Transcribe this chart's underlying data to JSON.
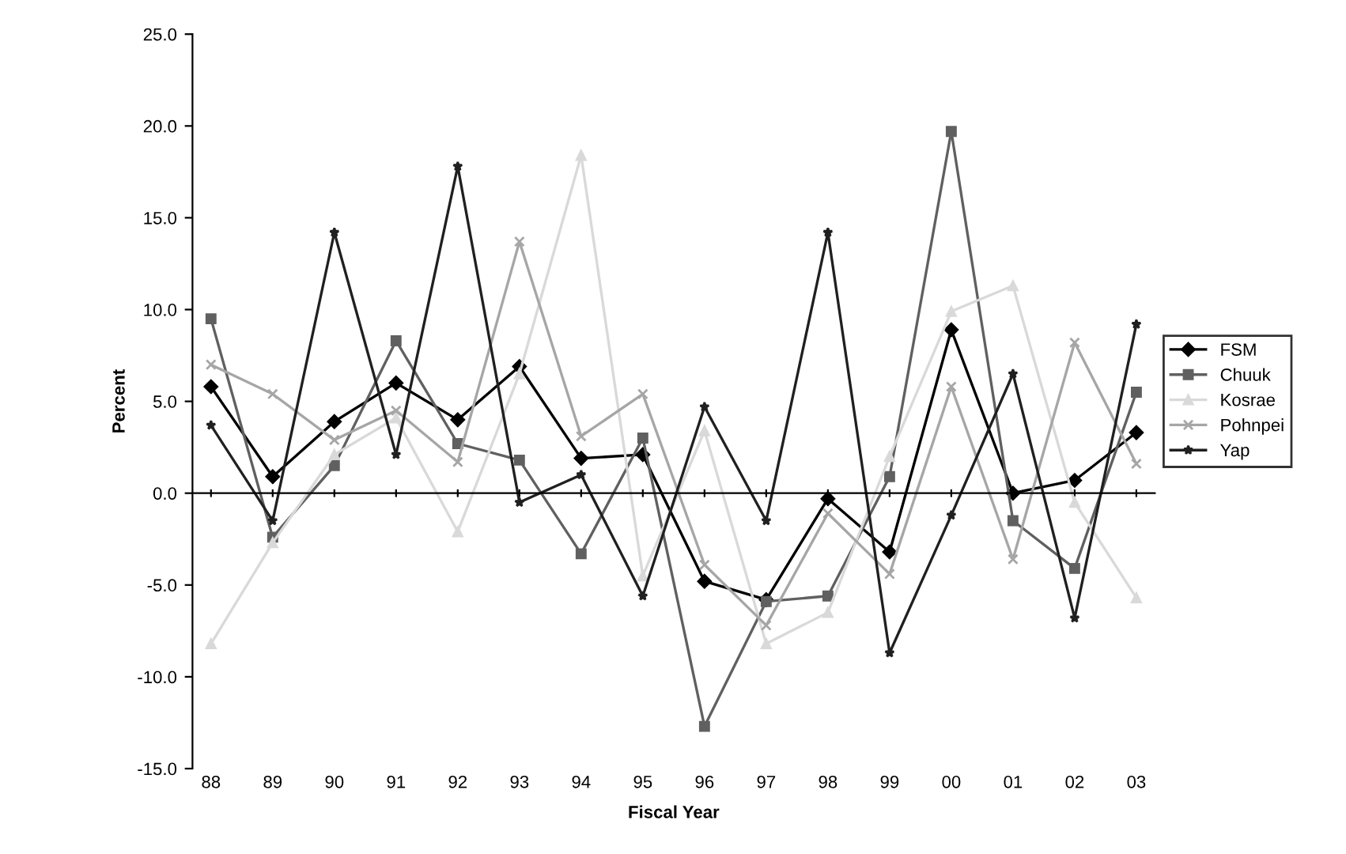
{
  "chart_data": {
    "type": "line",
    "xlabel": "Fiscal Year",
    "ylabel": "Percent",
    "categories": [
      "88",
      "89",
      "90",
      "91",
      "92",
      "93",
      "94",
      "95",
      "96",
      "97",
      "98",
      "99",
      "00",
      "01",
      "02",
      "03"
    ],
    "ylim": [
      -15,
      25
    ],
    "yticks": [
      {
        "value": -15,
        "label": "-15.0"
      },
      {
        "value": -10,
        "label": "-10.0"
      },
      {
        "value": -5,
        "label": "-5.0"
      },
      {
        "value": 0,
        "label": "0.0"
      },
      {
        "value": 5,
        "label": "5.0"
      },
      {
        "value": 10,
        "label": "10.0"
      },
      {
        "value": 15,
        "label": "15.0"
      },
      {
        "value": 20,
        "label": "20.0"
      },
      {
        "value": 25,
        "label": "25.0"
      }
    ],
    "legend": "right",
    "line_style": "solid",
    "series": [
      {
        "name": "FSM",
        "color": "#000000",
        "marker": "diamond",
        "values": [
          5.8,
          0.9,
          3.9,
          6.0,
          4.0,
          6.9,
          1.9,
          2.1,
          -4.8,
          -5.8,
          -0.3,
          -3.2,
          8.9,
          0.0,
          0.7,
          3.3
        ]
      },
      {
        "name": "Chuuk",
        "color": "#606060",
        "marker": "square",
        "values": [
          9.5,
          -2.4,
          1.5,
          8.3,
          2.7,
          1.8,
          -3.3,
          3.0,
          -12.7,
          -5.9,
          -5.6,
          0.9,
          19.7,
          -1.5,
          -4.1,
          5.5
        ]
      },
      {
        "name": "Kosrae",
        "color": "#d9d9d9",
        "marker": "triangle",
        "values": [
          -8.2,
          -2.7,
          2.1,
          4.1,
          -2.1,
          6.5,
          18.4,
          -4.5,
          3.4,
          -8.2,
          -6.5,
          2.0,
          9.9,
          11.3,
          -0.5,
          -5.7
        ]
      },
      {
        "name": "Pohnpei",
        "color": "#a6a6a6",
        "marker": "cross",
        "values": [
          7.0,
          5.4,
          2.9,
          4.5,
          1.7,
          13.7,
          3.1,
          5.4,
          -3.9,
          -7.2,
          -1.1,
          -4.4,
          5.8,
          -3.6,
          8.2,
          1.6
        ]
      },
      {
        "name": "Yap",
        "color": "#202020",
        "marker": "star",
        "values": [
          3.7,
          -1.5,
          14.2,
          2.1,
          17.8,
          -0.5,
          1.0,
          -5.6,
          4.7,
          -1.5,
          14.2,
          -8.7,
          -1.2,
          6.5,
          -6.8,
          9.2
        ]
      }
    ]
  }
}
